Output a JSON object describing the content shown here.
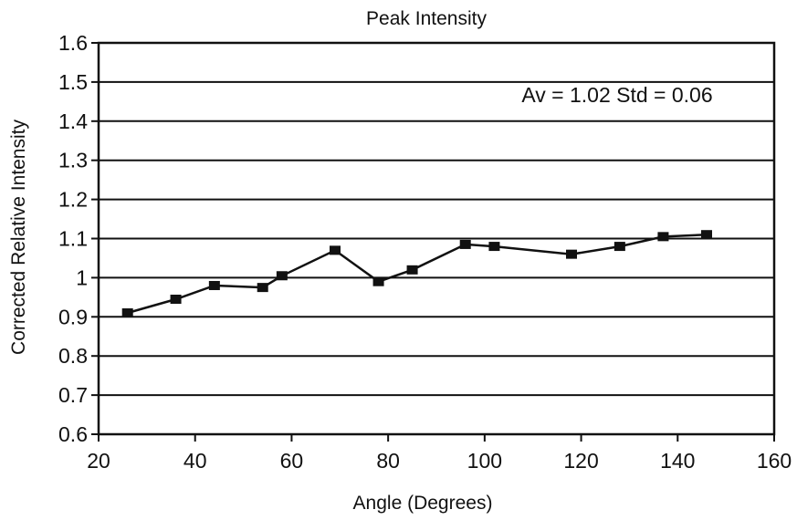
{
  "chart_data": {
    "type": "line",
    "title": "Peak Intensity",
    "xlabel": "Angle (Degrees)",
    "ylabel": "Corrected Relative Intensity",
    "annotation": "Av = 1.02 Std = 0.06",
    "xlim": [
      20,
      160
    ],
    "ylim": [
      0.6,
      1.6
    ],
    "x_ticks": [
      "20",
      "40",
      "60",
      "80",
      "100",
      "120",
      "140",
      "160"
    ],
    "y_ticks": [
      "0.6",
      "0.7",
      "0.8",
      "0.9",
      "1",
      "1.1",
      "1.2",
      "1.3",
      "1.4",
      "1.5",
      "1.6"
    ],
    "grid": true,
    "legend": "none",
    "series": [
      {
        "x": [
          26,
          36,
          44,
          54,
          58,
          69,
          78,
          85,
          96,
          102,
          118,
          128,
          137,
          146
        ],
        "y": [
          0.91,
          0.945,
          0.98,
          0.975,
          1.005,
          1.07,
          0.99,
          1.02,
          1.085,
          1.08,
          1.06,
          1.08,
          1.105,
          1.11
        ]
      }
    ],
    "colors": {
      "line": "#111111",
      "marker": "#111111",
      "grid": "#111111"
    }
  }
}
